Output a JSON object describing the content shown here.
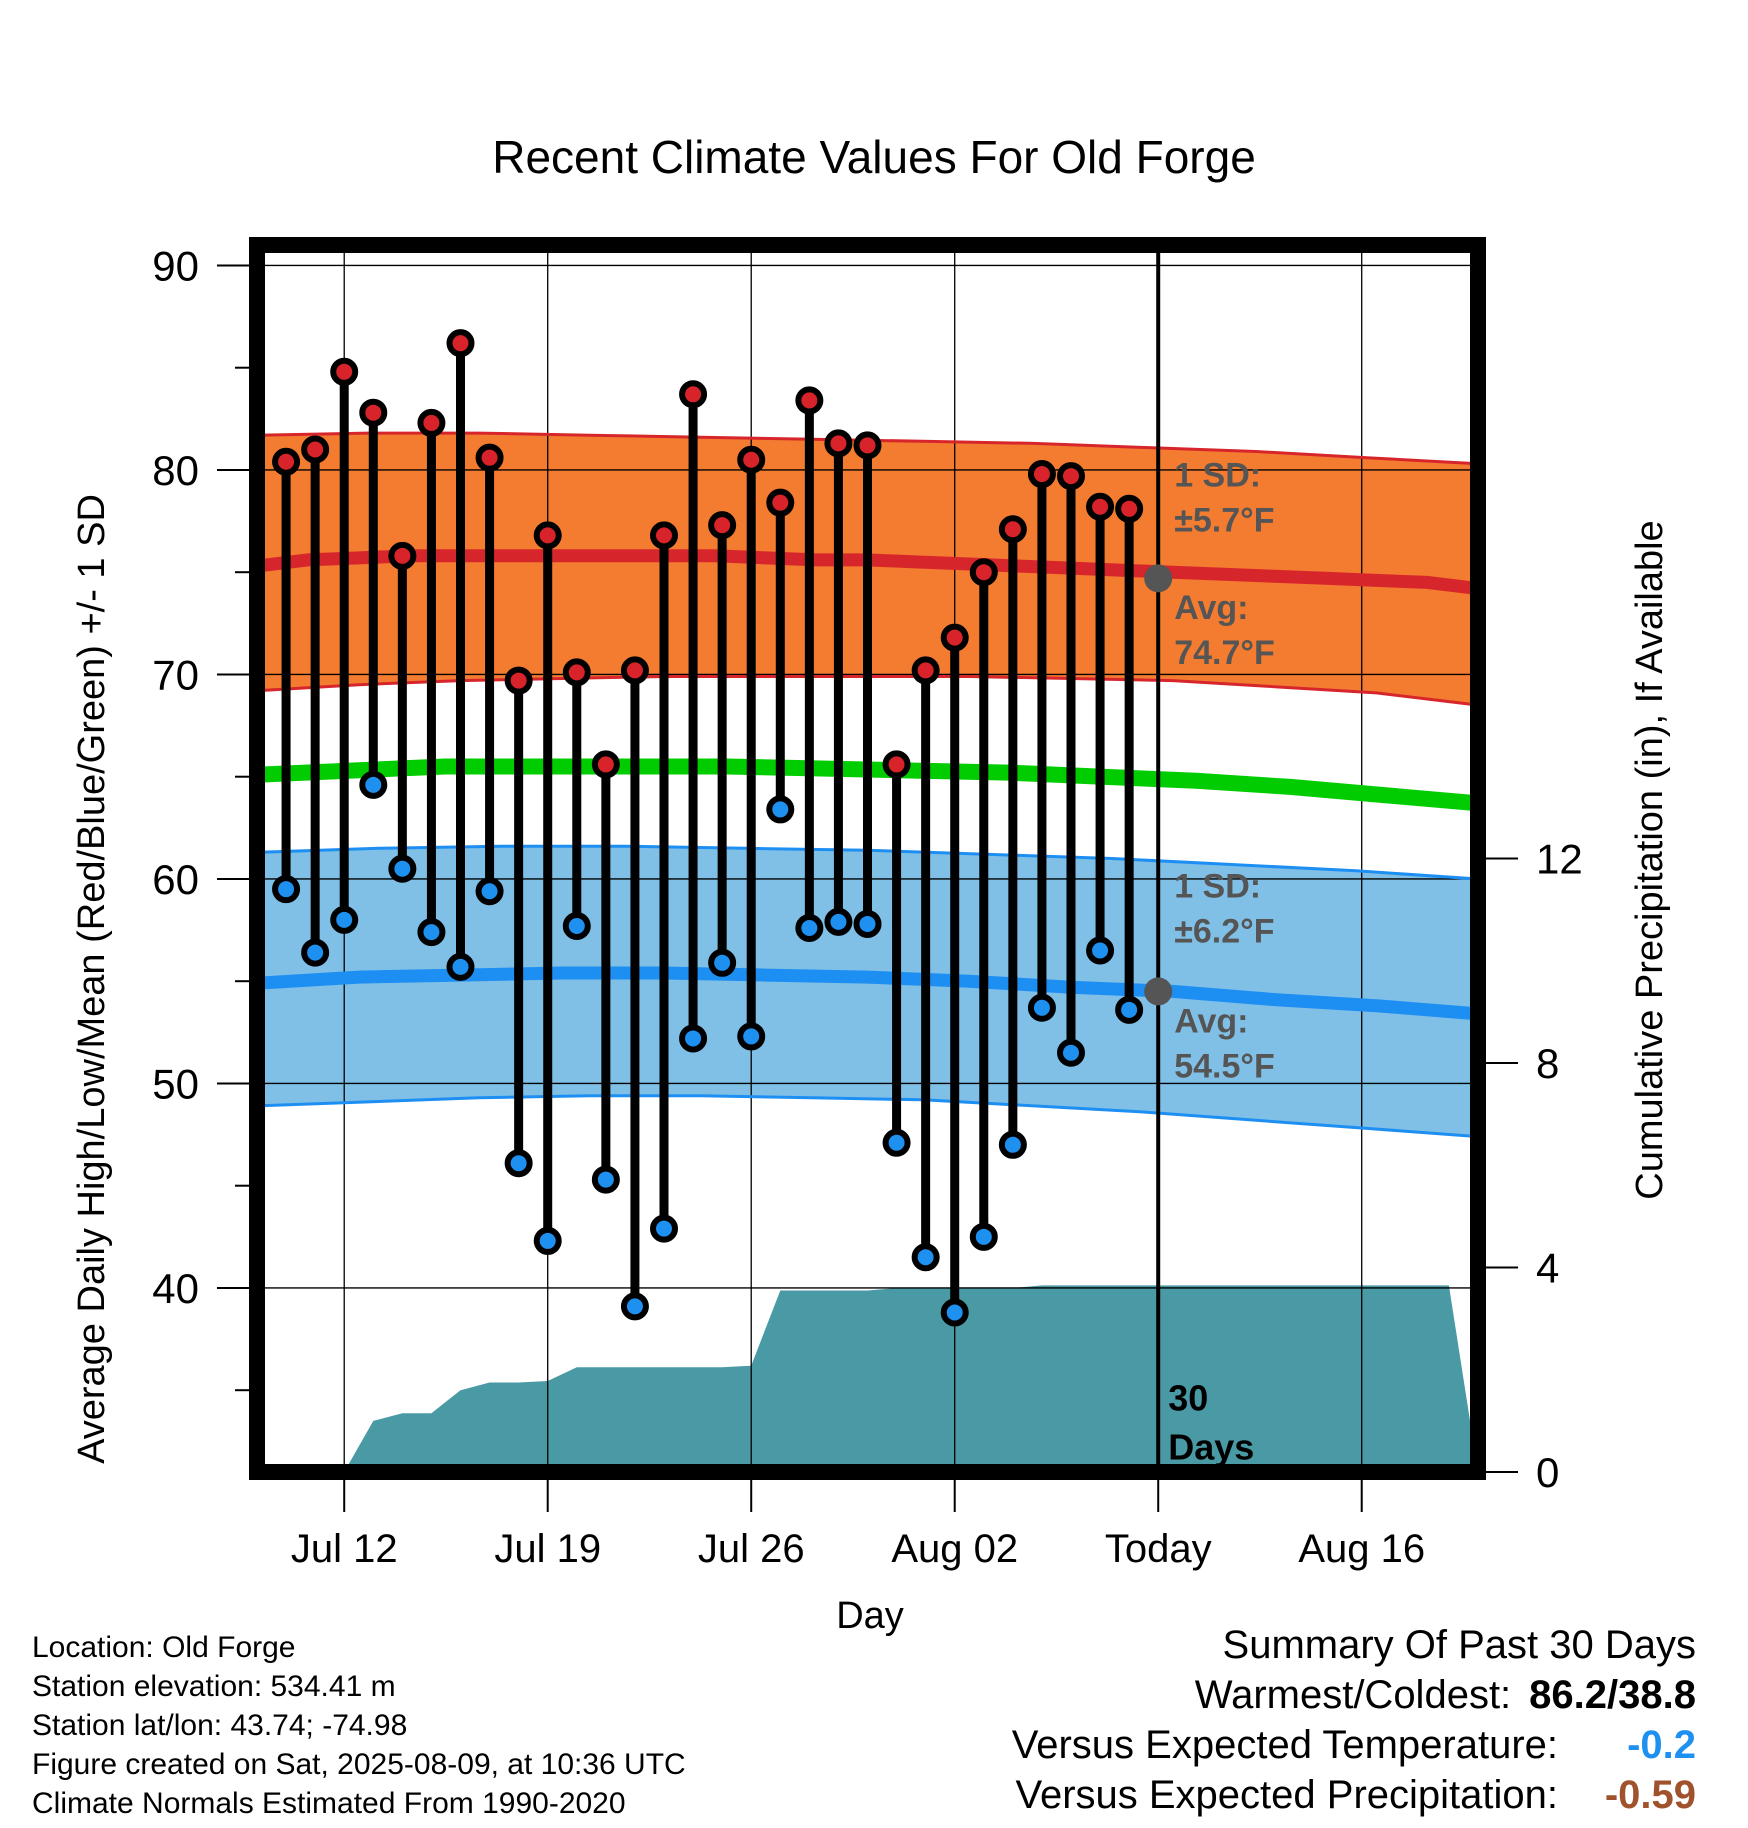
{
  "title": "Recent Climate Values For Old Forge",
  "chart_data": {
    "type": "line",
    "xlabel": "Day",
    "ylabel_left": "Average Daily High/Low/Mean (Red/Blue/Green) +/- 1 SD",
    "ylabel_right": "Cumulative Precipitation (in), If Available",
    "ylim": [
      31,
      91
    ],
    "ylim_right": [
      0,
      24
    ],
    "xlim": [
      0,
      42
    ],
    "x_ticks": [
      {
        "x": 3,
        "label": "Jul 12"
      },
      {
        "x": 10,
        "label": "Jul 19"
      },
      {
        "x": 17,
        "label": "Jul 26"
      },
      {
        "x": 24,
        "label": "Aug 02"
      },
      {
        "x": 31,
        "label": "Today"
      },
      {
        "x": 38,
        "label": "Aug 16"
      }
    ],
    "y_ticks": [
      40,
      50,
      60,
      70,
      80,
      90
    ],
    "y_ticks_right": [
      0,
      4,
      8,
      12
    ],
    "grid": true,
    "daily_high": [
      80.4,
      81.0,
      84.8,
      82.8,
      75.8,
      82.3,
      86.2,
      80.6,
      69.7,
      76.8,
      70.1,
      65.6,
      70.2,
      76.8,
      83.7,
      77.3,
      80.5,
      78.4,
      83.4,
      81.3,
      81.2,
      65.6,
      70.2,
      71.8,
      75.0,
      77.1,
      79.8,
      79.7,
      78.2,
      78.1
    ],
    "daily_low": [
      59.5,
      56.4,
      58.0,
      64.6,
      60.5,
      57.4,
      55.7,
      59.4,
      46.1,
      42.3,
      57.7,
      45.3,
      39.1,
      42.9,
      52.2,
      55.9,
      52.3,
      63.4,
      57.6,
      57.9,
      57.8,
      47.1,
      41.5,
      38.8,
      42.5,
      47.0,
      53.7,
      51.5,
      56.5,
      53.6
    ],
    "normal_high": [
      75.3,
      75.6,
      75.7,
      75.8,
      75.8,
      75.8,
      75.8,
      75.8,
      75.8,
      75.8,
      75.7,
      75.6,
      75.6,
      75.5,
      75.4,
      75.3,
      75.2,
      75.1,
      75.0,
      74.9,
      74.8,
      74.7,
      74.6,
      74.5,
      74.2
    ],
    "normal_high_upper": [
      81.7,
      81.8,
      81.8,
      81.7,
      81.6,
      81.5,
      81.4,
      81.3,
      81.1,
      80.9,
      80.6,
      80.3
    ],
    "normal_high_lower": [
      69.2,
      69.5,
      69.7,
      69.8,
      69.9,
      69.9,
      69.9,
      69.9,
      69.8,
      69.7,
      69.4,
      69.1,
      68.5
    ],
    "normal_mean": [
      65.1,
      65.3,
      65.5,
      65.5,
      65.5,
      65.5,
      65.4,
      65.3,
      65.2,
      65.0,
      64.8,
      64.5,
      64.1,
      63.7
    ],
    "normal_low": [
      54.9,
      55.2,
      55.3,
      55.4,
      55.4,
      55.3,
      55.2,
      55.0,
      54.7,
      54.5,
      54.1,
      53.8,
      53.4
    ],
    "normal_low_upper": [
      61.3,
      61.5,
      61.6,
      61.6,
      61.5,
      61.4,
      61.2,
      61.0,
      60.7,
      60.4,
      60.0
    ],
    "normal_low_lower": [
      48.9,
      49.1,
      49.3,
      49.4,
      49.4,
      49.3,
      49.2,
      48.9,
      48.6,
      48.2,
      47.8,
      47.4
    ],
    "cumulative_precip": [
      0,
      0,
      0,
      0,
      1.0,
      1.15,
      1.15,
      1.6,
      1.75,
      1.75,
      1.78,
      2.05,
      2.05,
      2.05,
      2.05,
      2.05,
      2.05,
      2.08,
      3.55,
      3.55,
      3.55,
      3.55,
      3.6,
      3.6,
      3.6,
      3.6,
      3.6,
      3.65,
      3.65,
      3.65,
      3.65,
      3.65,
      3.65,
      3.65,
      3.65,
      3.65,
      3.65,
      3.65,
      3.65,
      3.65,
      3.65,
      3.65
    ],
    "annotations": {
      "high_sd_line1": "1 SD:",
      "high_sd_line2": "±5.7°F",
      "high_avg_line1": "Avg:",
      "high_avg_line2": "74.7°F",
      "low_sd_line1": "1 SD:",
      "low_sd_line2": "±6.2°F",
      "low_avg_line1": "Avg:",
      "low_avg_line2": "54.5°F",
      "period_line1": "30",
      "period_line2": "Days"
    },
    "colors": {
      "high_band": "#f47c30",
      "high_line": "#d7262b",
      "mean_line": "#00cc00",
      "low_band": "#80c0e6",
      "low_line": "#1e8ff2",
      "precip": "#4a9aa5",
      "high_dot": "#d9232a",
      "low_dot": "#1e90f0",
      "annotation": "#555555"
    }
  },
  "info": {
    "location": "Location: Old Forge",
    "elevation": "Station elevation: 534.41 m",
    "latlon": "Station lat/lon: 43.74; -74.98",
    "created": "Figure created on Sat, 2025-08-09, at 10:36 UTC",
    "normals": "Climate Normals Estimated From 1990-2020"
  },
  "summary": {
    "heading": "Summary Of Past 30 Days",
    "warm_cold_label": "Warmest/Coldest:",
    "warm_cold_value": "86.2/38.8",
    "temp_label": "Versus Expected Temperature:",
    "temp_value": "-0.2",
    "temp_color": "#1e90f0",
    "precip_label": "Versus Expected Precipitation:",
    "precip_value": "-0.59",
    "precip_color": "#a0522d"
  }
}
